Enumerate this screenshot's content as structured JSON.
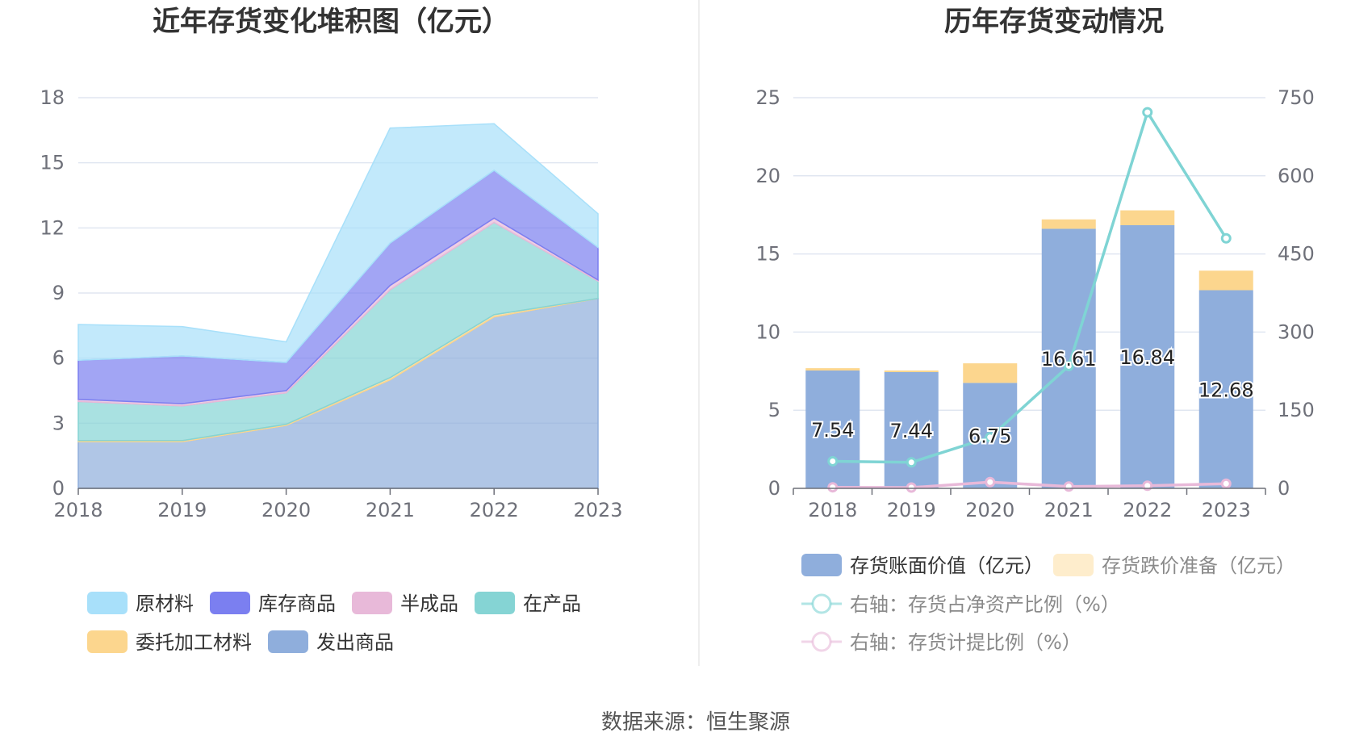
{
  "source_text": "数据来源：恒生聚源",
  "chart_data": [
    {
      "type": "area",
      "stacked": true,
      "title": "近年存货变化堆积图（亿元）",
      "categories": [
        "2018",
        "2019",
        "2020",
        "2021",
        "2022",
        "2023"
      ],
      "ylim": [
        0,
        18
      ],
      "yticks": [
        "0",
        "3",
        "6",
        "9",
        "12",
        "15",
        "18"
      ],
      "legend_position": "bottom",
      "series": [
        {
          "name": "发出商品",
          "color": "#8faedc",
          "values": [
            2.15,
            2.15,
            2.9,
            5.0,
            7.9,
            8.75
          ]
        },
        {
          "name": "委托加工材料",
          "color": "#fcd68e",
          "values": [
            0.05,
            0.05,
            0.05,
            0.1,
            0.1,
            0.0
          ]
        },
        {
          "name": "在产品",
          "color": "#85d4d4",
          "values": [
            1.8,
            1.6,
            1.45,
            4.05,
            4.25,
            0.8
          ]
        },
        {
          "name": "半成品",
          "color": "#e8b9d9",
          "values": [
            0.1,
            0.1,
            0.1,
            0.2,
            0.2,
            0.05
          ]
        },
        {
          "name": "库存商品",
          "color": "#7b7ff0",
          "values": [
            1.8,
            2.2,
            1.3,
            1.95,
            2.2,
            1.5
          ]
        },
        {
          "name": "原材料",
          "color": "#a8e0fa",
          "values": [
            1.65,
            1.35,
            0.95,
            5.3,
            2.15,
            1.55
          ]
        }
      ],
      "legend_order": [
        "原材料",
        "库存商品",
        "半成品",
        "在产品",
        "委托加工材料",
        "发出商品"
      ]
    },
    {
      "type": "bar",
      "stacked": true,
      "title": "历年存货变动情况",
      "categories": [
        "2018",
        "2019",
        "2020",
        "2021",
        "2022",
        "2023"
      ],
      "ylim": [
        0,
        25
      ],
      "yticks": [
        "0",
        "5",
        "10",
        "15",
        "20",
        "25"
      ],
      "y2lim": [
        0,
        750
      ],
      "y2ticks": [
        "0",
        "150",
        "300",
        "450",
        "600",
        "750"
      ],
      "legend_position": "bottom",
      "series": [
        {
          "name": "存货账面价值（亿元）",
          "color": "#8faedc",
          "axis": "left",
          "values": [
            7.54,
            7.44,
            6.75,
            16.61,
            16.84,
            12.68
          ],
          "labels": [
            "7.54",
            "7.44",
            "6.75",
            "16.61",
            "16.84",
            "12.68"
          ]
        },
        {
          "name": "存货跌价准备（亿元）",
          "color": "#fcd68e",
          "axis": "left",
          "values": [
            0.15,
            0.1,
            1.25,
            0.6,
            0.95,
            1.25
          ]
        }
      ],
      "lines": [
        {
          "name": "右轴：存货占净资产比例（%）",
          "color": "#7fd4d4",
          "axis": "right",
          "values": [
            52,
            50,
            98,
            235,
            722,
            480
          ]
        },
        {
          "name": "右轴：存货计提比例（%）",
          "color": "#e8b9d9",
          "axis": "right",
          "values": [
            2,
            1.5,
            12,
            3.5,
            5,
            9
          ]
        }
      ]
    }
  ]
}
